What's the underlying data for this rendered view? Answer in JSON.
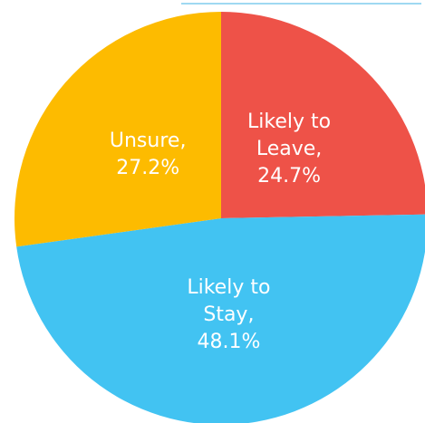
{
  "chart_data": {
    "type": "pie",
    "values": [
      24.7,
      48.1,
      27.2
    ],
    "value_labels": [
      "Likely to Leave, 24.7%",
      "Likely to Stay, 48.1%",
      "Unsure, 27.2%"
    ],
    "colors": [
      "#ee5248",
      "#42c3f2",
      "#fdbb00"
    ],
    "start_angle": 0,
    "direction": "clockwise"
  }
}
